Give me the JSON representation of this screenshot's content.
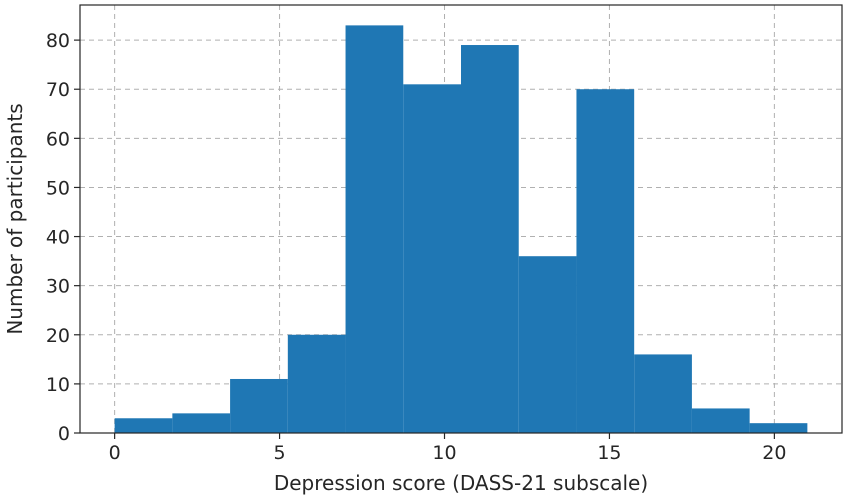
{
  "chart_data": {
    "type": "bar",
    "subtype": "histogram",
    "title": "",
    "xlabel": "Depression score (DASS-21 subscale)",
    "ylabel": "Number of participants",
    "bins": [
      {
        "start": 0.0,
        "end": 1.75,
        "count": 3
      },
      {
        "start": 1.75,
        "end": 3.5,
        "count": 4
      },
      {
        "start": 3.5,
        "end": 5.25,
        "count": 11
      },
      {
        "start": 5.25,
        "end": 7.0,
        "count": 20
      },
      {
        "start": 7.0,
        "end": 8.75,
        "count": 83
      },
      {
        "start": 8.75,
        "end": 10.5,
        "count": 71
      },
      {
        "start": 10.5,
        "end": 12.25,
        "count": 79
      },
      {
        "start": 12.25,
        "end": 14.0,
        "count": 36
      },
      {
        "start": 14.0,
        "end": 15.75,
        "count": 70
      },
      {
        "start": 15.75,
        "end": 17.5,
        "count": 16
      },
      {
        "start": 17.5,
        "end": 19.25,
        "count": 5
      },
      {
        "start": 19.25,
        "end": 21.0,
        "count": 2
      }
    ],
    "xlim": [
      -1.05,
      22.05
    ],
    "ylim": [
      0,
      87.15
    ],
    "xticks": [
      0,
      5,
      10,
      15,
      20
    ],
    "yticks": [
      0,
      10,
      20,
      30,
      40,
      50,
      60,
      70,
      80
    ],
    "grid": true,
    "bar_color": "#1f77b4"
  }
}
